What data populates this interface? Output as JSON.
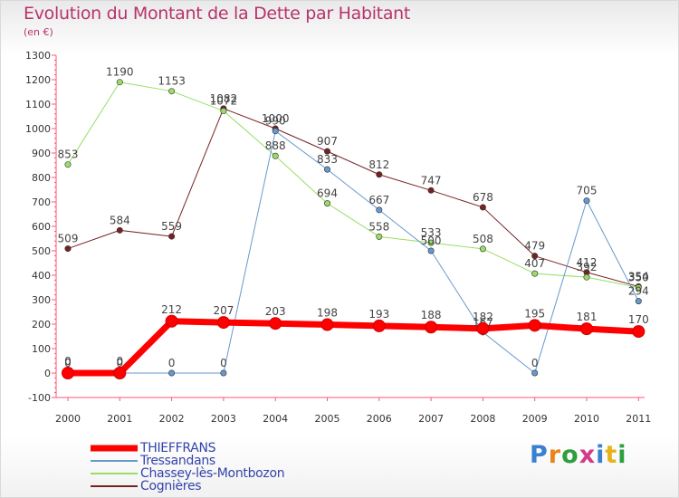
{
  "title": "Evolution du Montant de la Dette par Habitant",
  "subtitle": "(en €)",
  "logo": "Proxiti",
  "chart_data": {
    "type": "line",
    "title": "Evolution du Montant de la Dette par Habitant",
    "subtitle": "(en €)",
    "xlabel": "",
    "ylabel": "",
    "x": [
      "2000",
      "2001",
      "2002",
      "2003",
      "2004",
      "2005",
      "2006",
      "2007",
      "2008",
      "2009",
      "2010",
      "2011"
    ],
    "ylim": [
      -100,
      1300
    ],
    "yticks": [
      -100,
      0,
      100,
      200,
      300,
      400,
      500,
      600,
      700,
      800,
      900,
      1000,
      1100,
      1200,
      1300
    ],
    "grid": false,
    "legend": "bottom-left",
    "series": [
      {
        "name": "THIEFFRANS",
        "color": "#ff0000",
        "width": 7,
        "values": [
          0,
          0,
          212,
          207,
          203,
          198,
          193,
          188,
          182,
          195,
          181,
          170
        ]
      },
      {
        "name": "Tressandans",
        "color": "#6699cc",
        "width": 1,
        "values": [
          0,
          0,
          0,
          0,
          990,
          833,
          667,
          500,
          167,
          0,
          705,
          294
        ]
      },
      {
        "name": "Chassey-lès-Montbozon",
        "color": "#99dd66",
        "width": 1,
        "values": [
          853,
          1190,
          1153,
          1072,
          888,
          694,
          558,
          533,
          508,
          407,
          392,
          350
        ]
      },
      {
        "name": "Cognières",
        "color": "#772222",
        "width": 1,
        "values": [
          509,
          584,
          559,
          1082,
          1000,
          907,
          812,
          747,
          678,
          479,
          412,
          354
        ]
      }
    ]
  }
}
